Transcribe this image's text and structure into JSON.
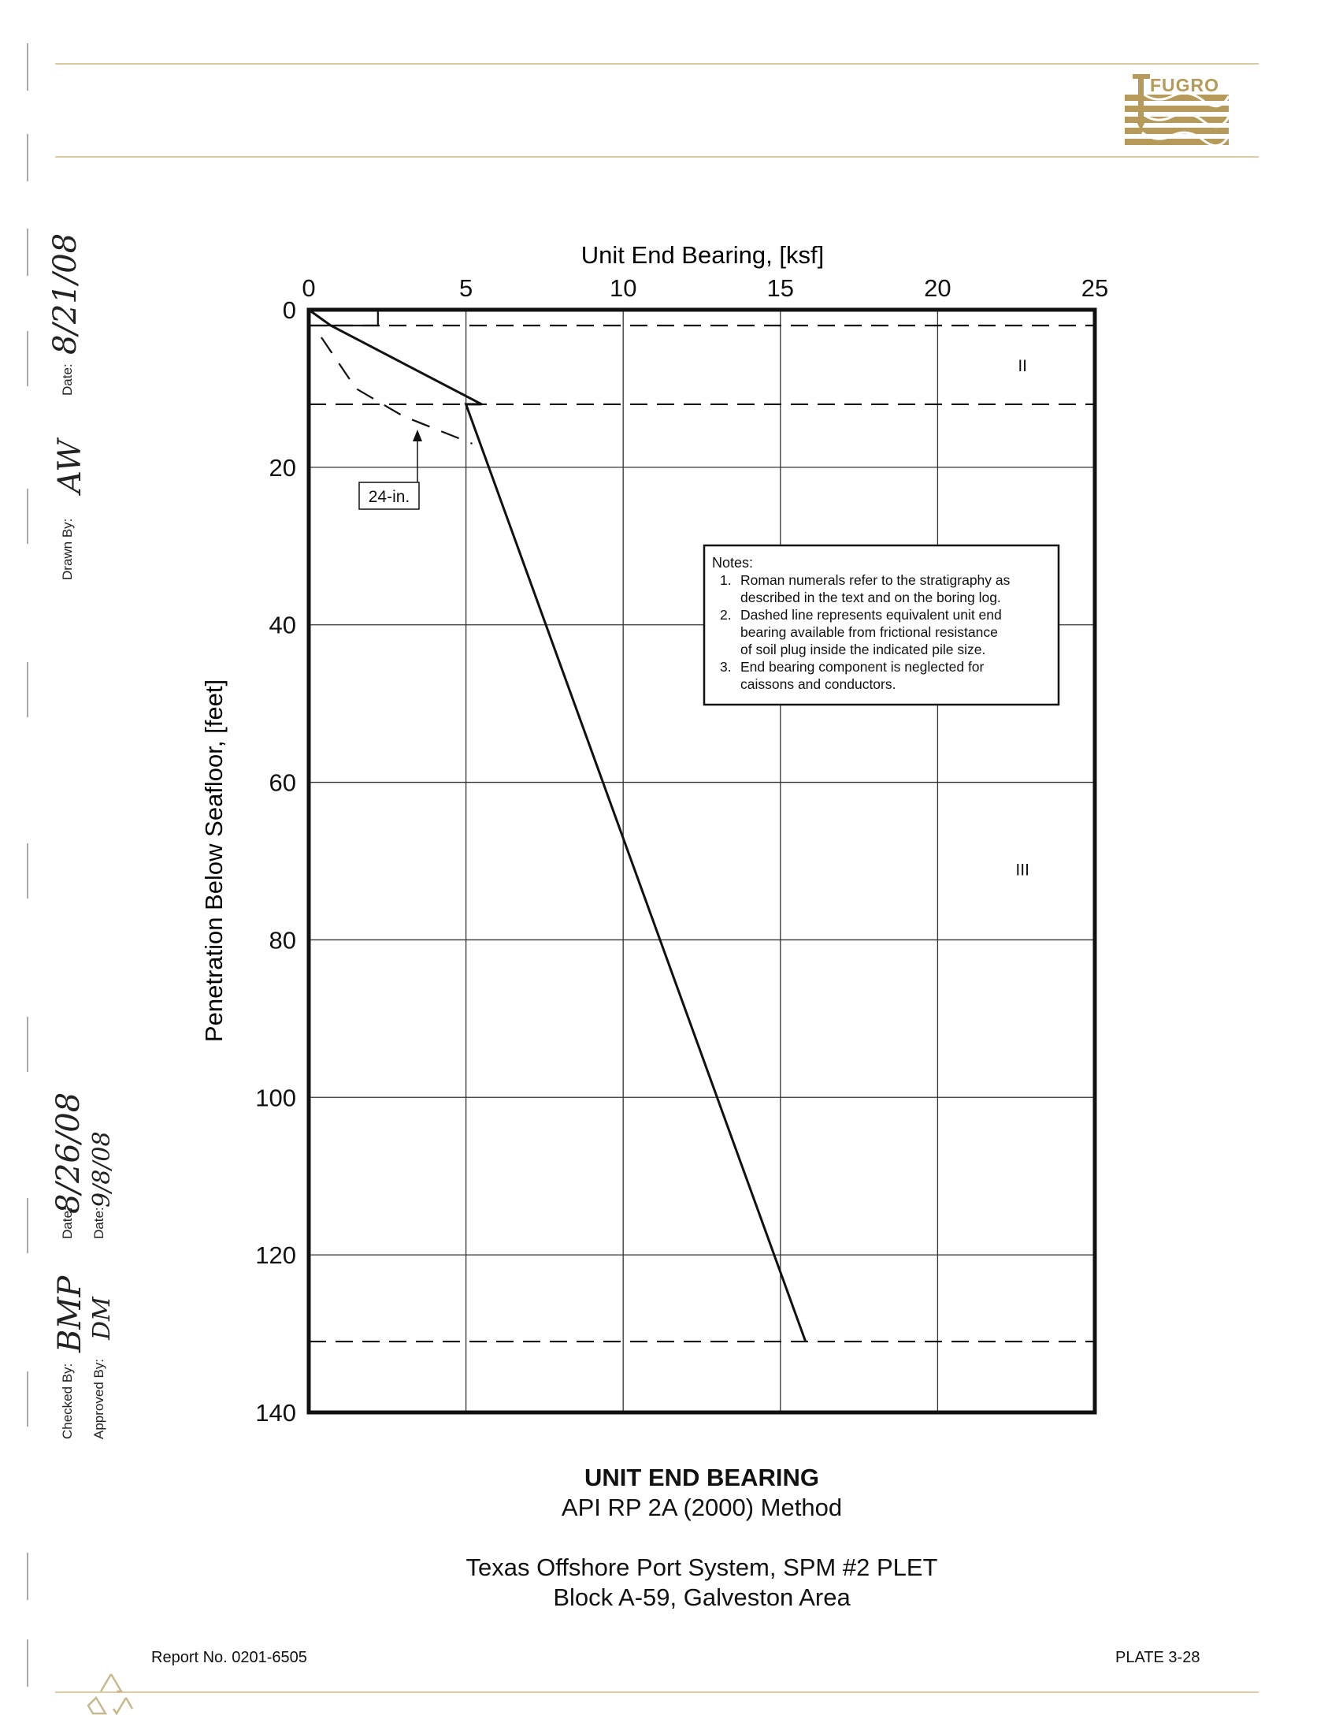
{
  "header": {
    "logo_text": "FUGRO",
    "logo_color": "#b59a5a",
    "rule_color": "#d9cba3"
  },
  "sidebar": {
    "drawn_by_label": "Drawn By:",
    "drawn_by_value": "AW",
    "drawn_date_label": "Date:",
    "drawn_date_value": "8/21/08",
    "checked_by_label": "Checked By:",
    "checked_by_value": "BMP",
    "checked_date_label": "Date:",
    "checked_date_value": "8/26/08",
    "approved_by_label": "Approved By:",
    "approved_by_value": "DM",
    "approved_date_label": "Date:",
    "approved_date_value": "9/8/08"
  },
  "chart_data": {
    "type": "line",
    "xlabel": "Unit End Bearing, [ksf]",
    "ylabel": "Penetration Below Seafloor, [feet]",
    "xlim": [
      0,
      25
    ],
    "ylim": [
      0,
      140
    ],
    "y_inverted": true,
    "x_axis_position": "top",
    "x_ticks": [
      0,
      5,
      10,
      15,
      20,
      25
    ],
    "y_ticks": [
      0,
      20,
      40,
      60,
      80,
      100,
      120,
      140
    ],
    "grid": true,
    "series": [
      {
        "style": "solid",
        "points": [
          [
            0,
            0
          ],
          [
            0.7,
            2
          ],
          [
            5.5,
            12
          ],
          [
            5.0,
            12
          ],
          [
            15.8,
            131
          ]
        ]
      },
      {
        "style": "dashed",
        "label": "24-in.",
        "points": [
          [
            0.4,
            3.5
          ],
          [
            1.5,
            10
          ],
          [
            3.0,
            13.5
          ],
          [
            5.2,
            17
          ]
        ]
      }
    ],
    "layer_boundaries": [
      2,
      12,
      131
    ],
    "upper_layer_box": {
      "x_end": 2.2,
      "y_end": 2
    },
    "layer_labels": [
      {
        "text": "II",
        "x": 22.7,
        "y": 7
      },
      {
        "text": "III",
        "x": 22.7,
        "y": 71
      }
    ],
    "notes": {
      "title": "Notes:",
      "items": [
        {
          "num": "1.",
          "lines": [
            "Roman numerals refer to the stratigraphy as",
            "described in the text and on the boring log."
          ]
        },
        {
          "num": "2.",
          "lines": [
            "Dashed line represents equivalent unit end",
            "bearing available from frictional resistance",
            "of soil plug inside the indicated pile size."
          ]
        },
        {
          "num": "3.",
          "lines": [
            "End bearing component is neglected for",
            "caissons and conductors."
          ]
        }
      ]
    }
  },
  "footer": {
    "title": "UNIT END BEARING",
    "method": "API RP 2A (2000) Method",
    "project": "Texas Offshore Port System, SPM #2 PLET",
    "location": "Block A-59, Galveston Area",
    "report_no": "Report No. 0201-6505",
    "plate": "PLATE 3-28"
  }
}
